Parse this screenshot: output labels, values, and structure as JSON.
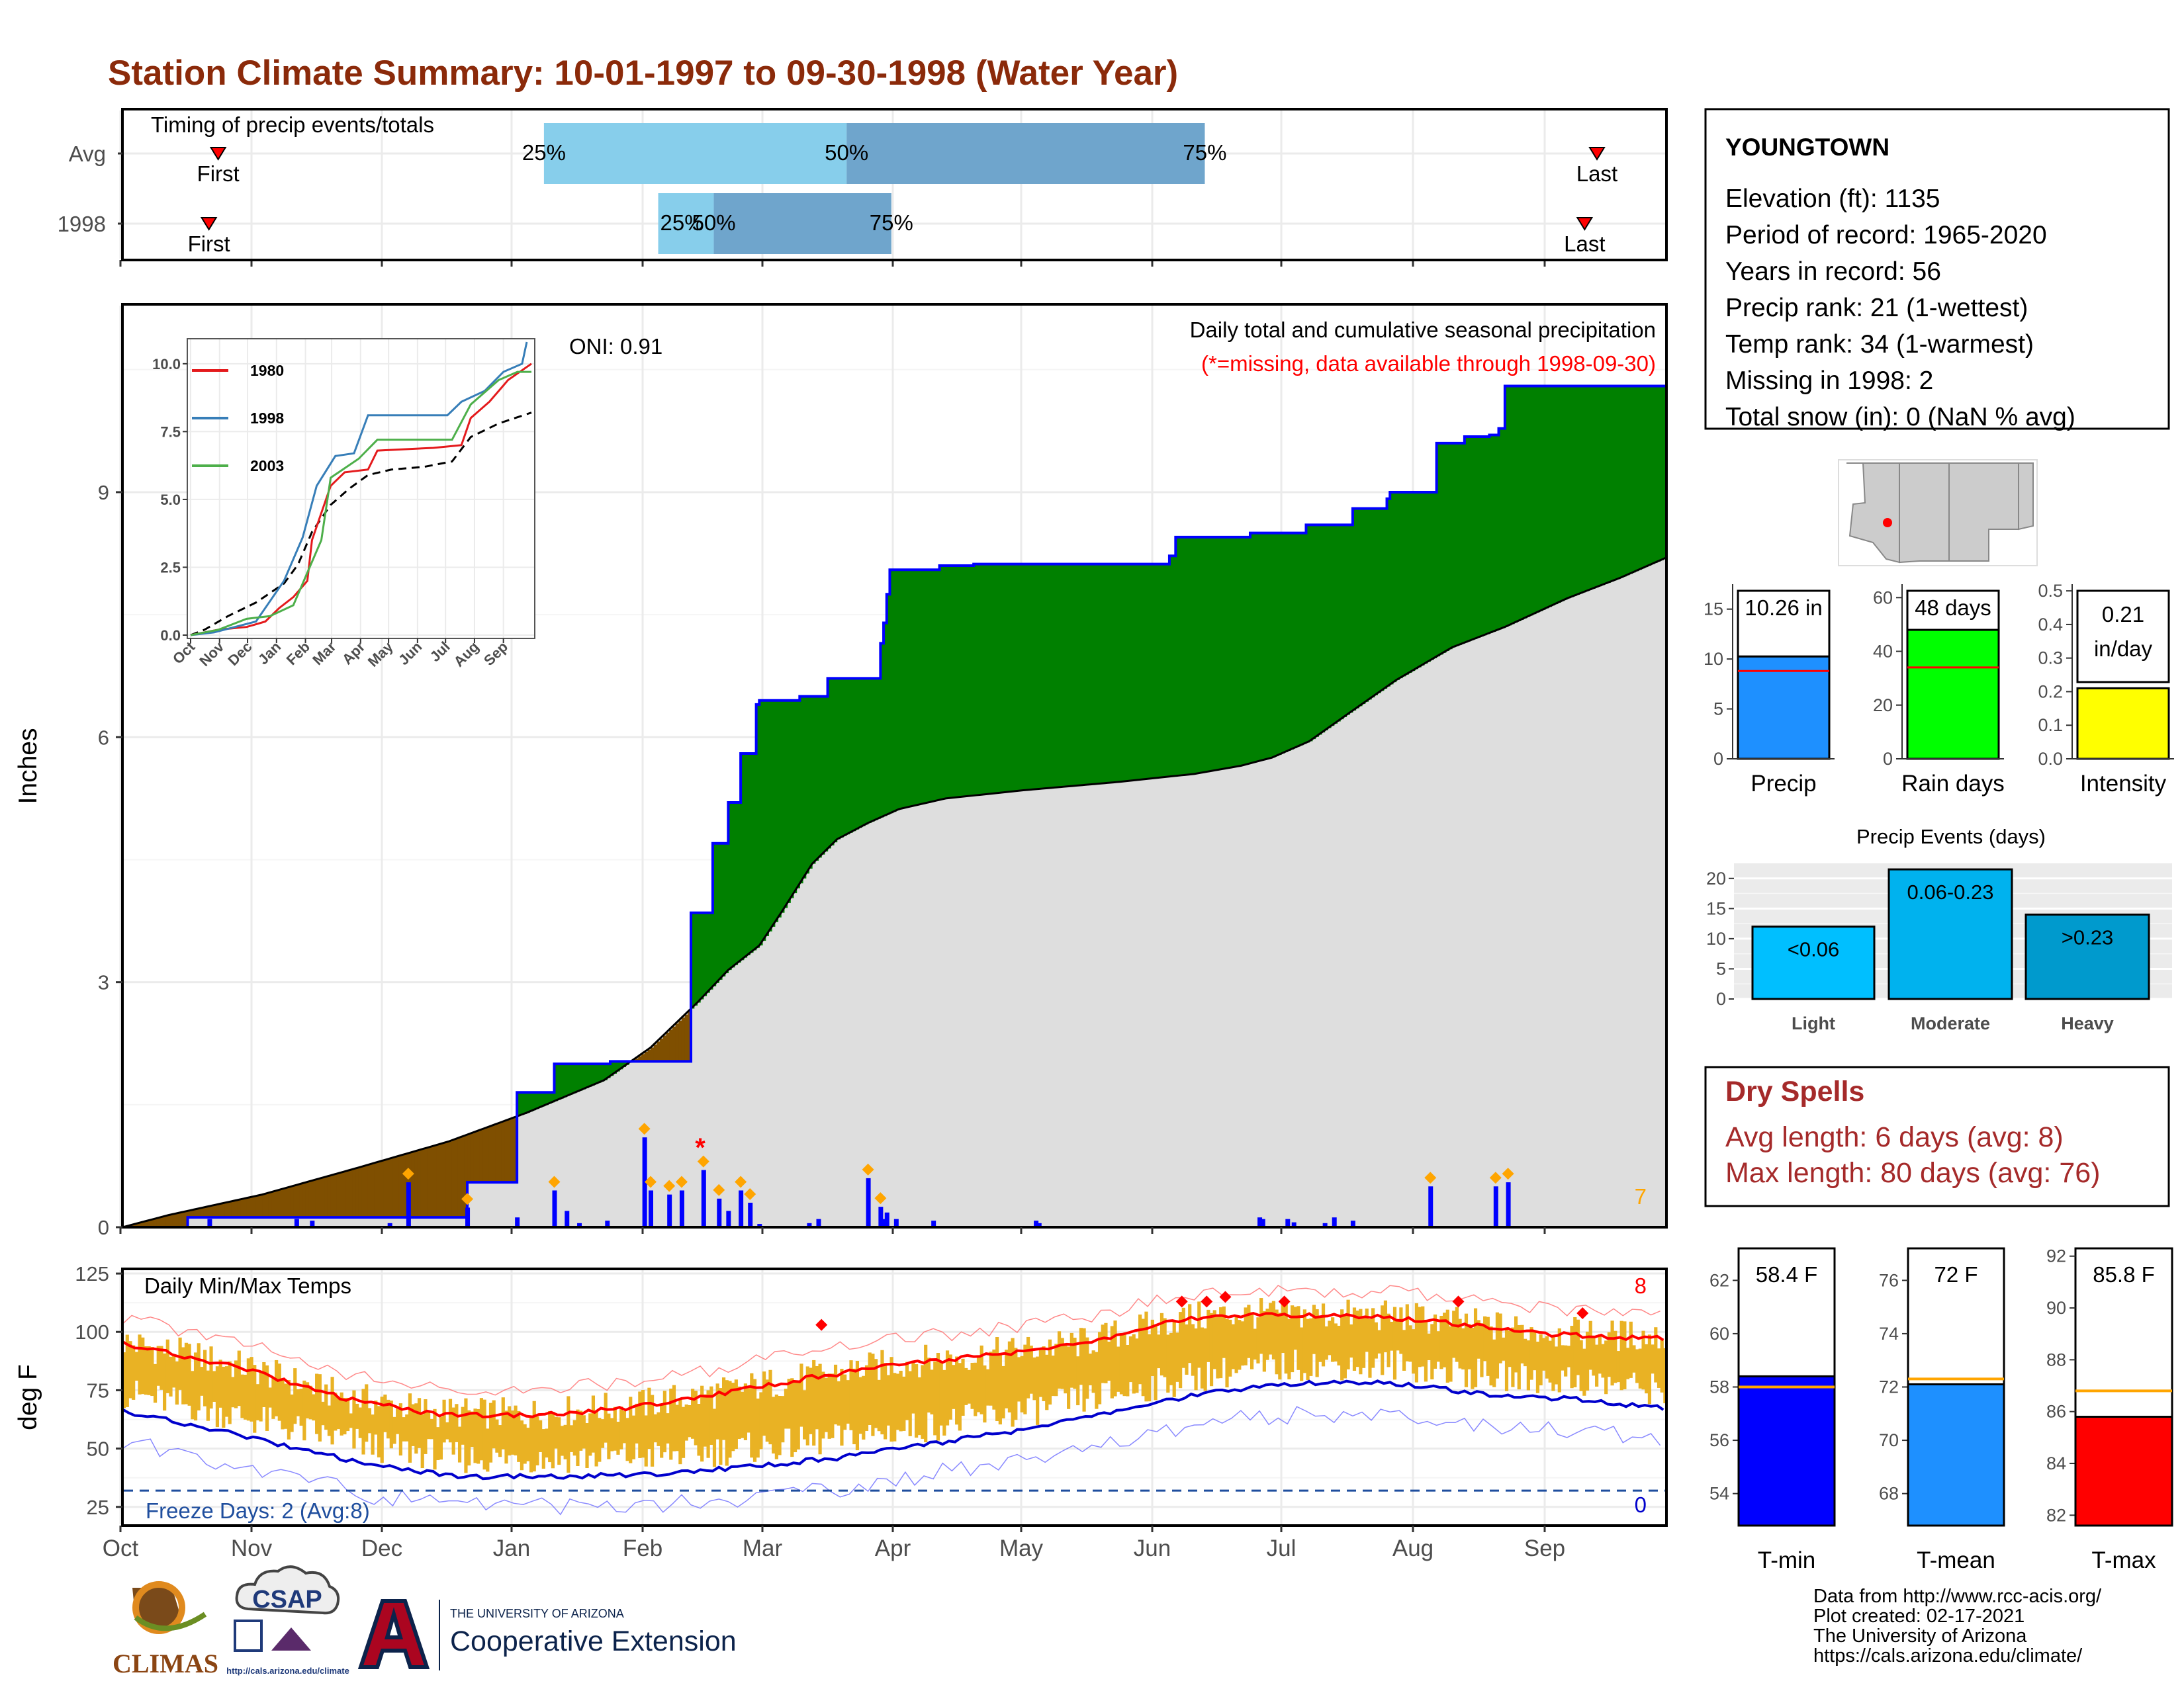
{
  "title": "Station Climate Summary: 10-01-1997 to 09-30-1998 (Water Year)",
  "timing": {
    "label": "Timing of precip events/totals",
    "rows": [
      {
        "name": "Avg",
        "first": "First",
        "last": "Last",
        "first_frac": 0.062,
        "last_frac": 0.955,
        "p25_frac": 0.273,
        "p50_frac": 0.469,
        "p75_frac": 0.701
      },
      {
        "name": "1998",
        "first": "First",
        "last": "Last",
        "first_frac": 0.056,
        "last_frac": 0.947,
        "p25_frac": 0.347,
        "p50_frac": 0.383,
        "p75_frac": 0.498
      }
    ],
    "pct_labels": [
      "25%",
      "50%",
      "75%"
    ]
  },
  "colors": {
    "above_avg": "#008000",
    "below_avg": "#7f4f00",
    "avg_fill": "#dedede",
    "cum_line": "#0000ff",
    "tmax_band": "#e9b224",
    "red": "#e41a1c",
    "blue": "#0a14c8",
    "q_light": "#87ceeb",
    "q_dark": "#6fa5cc",
    "title": "#8b2a0a"
  },
  "oni": "ONI: 0.91",
  "precip_panel": {
    "title": "Daily total and cumulative seasonal precipitation",
    "subtitle": "(*=missing, data available through 1998-09-30)",
    "ylabel": "Inches",
    "yticks": [
      "0",
      "3",
      "6",
      "9"
    ],
    "count_label": "7"
  },
  "months": [
    "Oct",
    "Nov",
    "Dec",
    "Jan",
    "Feb",
    "Mar",
    "Apr",
    "May",
    "Jun",
    "Jul",
    "Aug",
    "Sep"
  ],
  "inset": {
    "legend": [
      "1980",
      "1998",
      "2003"
    ],
    "legend_colors": [
      "#e41a1c",
      "#377eb8",
      "#4daf4a"
    ],
    "yticks": [
      "0.0",
      "2.5",
      "5.0",
      "7.5",
      "10.0"
    ]
  },
  "temp_panel": {
    "title": "Daily Min/Max Temps",
    "ylabel": "deg F",
    "yticks": [
      "25",
      "50",
      "75",
      "100",
      "125"
    ],
    "freeze_label": "Freeze Days: 2 (Avg:8)",
    "record_high_count": "8",
    "record_low_count": "0"
  },
  "station": {
    "name": "YOUNGTOWN",
    "lines": [
      "Elevation (ft): 1135",
      "Period of record: 1965-2020",
      "Years in record: 56",
      "Precip rank: 21 (1-wettest)",
      "Temp rank: 34 (1-warmest)",
      "Missing in 1998: 2",
      "Total snow (in): 0 (NaN % avg)"
    ]
  },
  "summary_bars": [
    {
      "label": "Precip",
      "value_label": "10.26 in",
      "value": 10.26,
      "avg": 8.8,
      "yticks": [
        "0",
        "5",
        "10",
        "15"
      ],
      "ymax": 17.5,
      "color": "#1e90ff"
    },
    {
      "label": "Rain days",
      "value_label": "48 days",
      "value": 48,
      "avg": 34,
      "yticks": [
        "0",
        "20",
        "40",
        "60"
      ],
      "ymax": 65,
      "color": "#00ff00"
    },
    {
      "label": "Intensity",
      "value_label_1": "0.21",
      "value_label_2": "in/day",
      "value": 0.21,
      "avg": 0.26,
      "yticks": [
        "0.0",
        "0.1",
        "0.2",
        "0.3",
        "0.4",
        "0.5"
      ],
      "ymax": 0.52,
      "color": "#ffff00"
    }
  ],
  "precip_events": {
    "title": "Precip Events (days)",
    "yticks": [
      "0",
      "5",
      "10",
      "15",
      "20"
    ],
    "bars": [
      {
        "label": "Light",
        "range": "<0.06",
        "value": 12,
        "color": "#00bfff"
      },
      {
        "label": "Moderate",
        "range": "0.06-0.23",
        "value": 21.5,
        "color": "#00b2ee"
      },
      {
        "label": "Heavy",
        "range": ">0.23",
        "value": 14,
        "color": "#009acd"
      }
    ]
  },
  "dry_spells": {
    "title": "Dry Spells",
    "avg_line": "Avg length: 6 days (avg: 8)",
    "max_line": "Max length: 80 days (avg: 76)"
  },
  "temp_bars": [
    {
      "label": "T-min",
      "value_label": "58.4 F",
      "value": 58.4,
      "avg": 58.0,
      "yticks": [
        "54",
        "56",
        "58",
        "60",
        "62"
      ],
      "ymin": 52.8,
      "ymax": 63.2,
      "color": "#0000ff"
    },
    {
      "label": "T-mean",
      "value_label": "72 F",
      "value": 72.1,
      "avg": 72.3,
      "yticks": [
        "68",
        "70",
        "72",
        "74",
        "76"
      ],
      "ymin": 66.8,
      "ymax": 77.2,
      "color": "#1e90ff"
    },
    {
      "label": "T-max",
      "value_label": "85.8 F",
      "value": 85.8,
      "avg": 86.8,
      "yticks": [
        "82",
        "84",
        "86",
        "88",
        "90",
        "92"
      ],
      "ymin": 81.6,
      "ymax": 92.3,
      "color": "#ff0000"
    }
  ],
  "footer": {
    "credits": [
      "Data from http://www.rcc-acis.org/",
      "Plot created: 02-17-2021",
      "The University of Arizona",
      "https://cals.arizona.edu/climate/"
    ],
    "logo_climas": "CLIMAS",
    "logo_csap": "CSAP",
    "logo_csap_url": "http://cals.arizona.edu/climate",
    "logo_ua_small": "THE UNIVERSITY OF ARIZONA",
    "logo_ua_big": "Cooperative Extension"
  },
  "chart_data": {
    "type": "area",
    "title": "Daily total and cumulative seasonal precipitation",
    "ylabel": "Inches",
    "ylim": [
      0,
      11.3
    ],
    "x": [
      "Oct",
      "Nov",
      "Dec",
      "Jan",
      "Feb",
      "Mar",
      "Apr",
      "May",
      "Jun",
      "Jul",
      "Aug",
      "Sep"
    ],
    "series": [
      {
        "name": "1998",
        "points": [
          [
            0,
            0
          ],
          [
            20,
            0
          ],
          [
            21,
            0.12
          ],
          [
            110,
            0.12
          ],
          [
            111,
            0.55
          ],
          [
            126,
            0.55
          ],
          [
            127,
            1.65
          ],
          [
            138,
            1.65
          ],
          [
            139,
            2.0
          ],
          [
            156,
            2.0
          ],
          [
            157,
            2.03
          ],
          [
            182,
            2.03
          ],
          [
            183,
            3.85
          ],
          [
            189,
            3.85
          ],
          [
            190,
            4.7
          ],
          [
            194,
            4.7
          ],
          [
            195,
            5.2
          ],
          [
            199,
            5.8
          ],
          [
            204,
            6.4
          ],
          [
            205,
            6.45
          ],
          [
            217,
            6.45
          ],
          [
            218,
            6.5
          ],
          [
            227,
            6.72
          ],
          [
            243,
            6.72
          ],
          [
            244,
            7.15
          ],
          [
            245,
            7.4
          ],
          [
            246,
            7.75
          ],
          [
            247,
            8.05
          ],
          [
            262,
            8.05
          ],
          [
            263,
            8.1
          ],
          [
            273,
            8.1
          ],
          [
            274,
            8.12
          ],
          [
            336,
            8.12
          ],
          [
            337,
            8.22
          ],
          [
            339,
            8.45
          ],
          [
            362,
            8.45
          ],
          [
            363,
            8.5
          ],
          [
            379,
            8.5
          ],
          [
            381,
            8.6
          ],
          [
            395,
            8.6
          ],
          [
            396,
            8.8
          ],
          [
            406,
            8.8
          ],
          [
            407,
            8.92
          ],
          [
            408,
            9.0
          ],
          [
            422,
            9.0
          ],
          [
            423,
            9.6
          ],
          [
            431,
            9.6
          ],
          [
            432,
            9.68
          ],
          [
            440,
            9.7
          ],
          [
            443,
            9.78
          ],
          [
            445,
            10.3
          ],
          [
            497,
            10.3
          ]
        ]
      },
      {
        "name": "Avg",
        "points": [
          [
            0,
            0
          ],
          [
            15,
            0.15
          ],
          [
            45,
            0.4
          ],
          [
            75,
            0.72
          ],
          [
            105,
            1.05
          ],
          [
            130,
            1.4
          ],
          [
            155,
            1.8
          ],
          [
            170,
            2.2
          ],
          [
            185,
            2.75
          ],
          [
            195,
            3.15
          ],
          [
            205,
            3.45
          ],
          [
            212,
            3.85
          ],
          [
            222,
            4.45
          ],
          [
            230,
            4.75
          ],
          [
            240,
            4.95
          ],
          [
            250,
            5.12
          ],
          [
            265,
            5.25
          ],
          [
            290,
            5.35
          ],
          [
            320,
            5.45
          ],
          [
            345,
            5.55
          ],
          [
            360,
            5.65
          ],
          [
            370,
            5.75
          ],
          [
            382,
            5.95
          ],
          [
            395,
            6.3
          ],
          [
            410,
            6.7
          ],
          [
            428,
            7.1
          ],
          [
            445,
            7.35
          ],
          [
            465,
            7.7
          ],
          [
            482,
            7.95
          ],
          [
            497,
            8.2
          ]
        ]
      }
    ],
    "daily_precip_days": [
      [
        28,
        0.1
      ],
      [
        56,
        0.1
      ],
      [
        61,
        0.08
      ],
      [
        86,
        0.05
      ],
      [
        92,
        0.55
      ],
      [
        111,
        0.24
      ],
      [
        127,
        0.12
      ],
      [
        139,
        0.45
      ],
      [
        143,
        0.2
      ],
      [
        147,
        0.05
      ],
      [
        156,
        0.08
      ],
      [
        168,
        1.1
      ],
      [
        170,
        0.45
      ],
      [
        176,
        0.4
      ],
      [
        180,
        0.45
      ],
      [
        187,
        0.7
      ],
      [
        192,
        0.35
      ],
      [
        195,
        0.2
      ],
      [
        199,
        0.45
      ],
      [
        202,
        0.3
      ],
      [
        205,
        0.04
      ],
      [
        221,
        0.05
      ],
      [
        224,
        0.1
      ],
      [
        240,
        0.6
      ],
      [
        244,
        0.25
      ],
      [
        245,
        0.1
      ],
      [
        246,
        0.18
      ],
      [
        249,
        0.1
      ],
      [
        261,
        0.08
      ],
      [
        294,
        0.08
      ],
      [
        295,
        0.05
      ],
      [
        366,
        0.12
      ],
      [
        367,
        0.1
      ],
      [
        375,
        0.1
      ],
      [
        377,
        0.06
      ],
      [
        387,
        0.05
      ],
      [
        390,
        0.12
      ],
      [
        396,
        0.08
      ],
      [
        421,
        0.5
      ],
      [
        442,
        0.5
      ],
      [
        446,
        0.55
      ]
    ],
    "oni": 0.91,
    "temps": {
      "ylim": [
        17,
        127
      ],
      "ylabel": "deg F",
      "tmax_avg": [
        [
          0,
          95
        ],
        [
          40,
          84
        ],
        [
          70,
          72
        ],
        [
          100,
          65
        ],
        [
          130,
          64
        ],
        [
          160,
          67
        ],
        [
          190,
          73
        ],
        [
          220,
          80
        ],
        [
          250,
          86
        ],
        [
          280,
          90
        ],
        [
          310,
          95
        ],
        [
          340,
          105
        ],
        [
          360,
          107
        ],
        [
          380,
          107
        ],
        [
          410,
          106
        ],
        [
          440,
          102
        ],
        [
          460,
          99
        ],
        [
          497,
          97
        ]
      ],
      "tmin_avg": [
        [
          0,
          66
        ],
        [
          30,
          58
        ],
        [
          60,
          49
        ],
        [
          80,
          43
        ],
        [
          110,
          38
        ],
        [
          140,
          38
        ],
        [
          170,
          39
        ],
        [
          200,
          42
        ],
        [
          230,
          46
        ],
        [
          260,
          52
        ],
        [
          290,
          58
        ],
        [
          320,
          66
        ],
        [
          350,
          74
        ],
        [
          380,
          78
        ],
        [
          410,
          78
        ],
        [
          440,
          73
        ],
        [
          470,
          71
        ],
        [
          497,
          67
        ]
      ]
    }
  }
}
